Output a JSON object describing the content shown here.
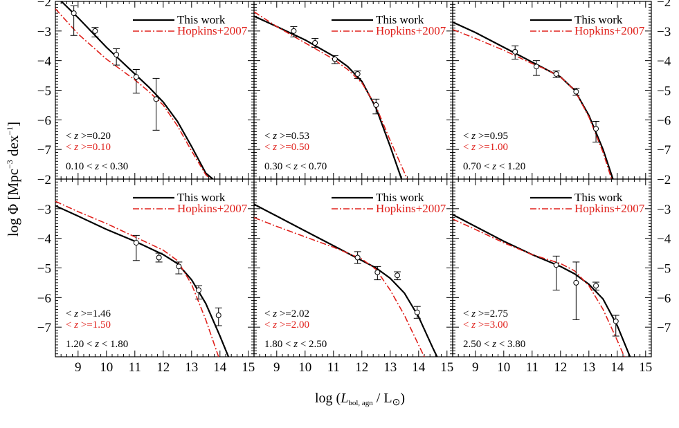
{
  "figure": {
    "ylabel": "log Φ [Mpc⁻³ dex⁻¹]",
    "xlabel": "log (L bol, agn / L⊙)",
    "xlabel_parts": {
      "pre": "log (",
      "L": "L",
      "sub": "bol, agn",
      "post": " / L",
      "sun": "⊙",
      "close": ")"
    },
    "ylabel_parts": {
      "pre": "log Φ [Mpc",
      "sup1": "−3",
      "mid": " dex",
      "sup2": "−1",
      "post": "]"
    },
    "legend": {
      "this_work": "This work",
      "hopkins": "Hopkins+2007"
    },
    "colors": {
      "this_work": "#000000",
      "hopkins": "#e0201b",
      "points": "#000000"
    }
  },
  "chart_data": [
    {
      "type": "line",
      "panel": "top-left",
      "z_range_label": "0.10 < z < 0.30",
      "mean_z_this": "< z >=0.20",
      "mean_z_hopkins": "< z >=0.10",
      "xlim": [
        8.2,
        15.2
      ],
      "ylim": [
        -8.0,
        -2.0
      ],
      "xticks": [
        9,
        10,
        11,
        12,
        13,
        14,
        15
      ],
      "yticks": [
        -2,
        -3,
        -4,
        -5,
        -6,
        -7
      ],
      "series": [
        {
          "name": "This work",
          "style": "solid",
          "x": [
            8.2,
            9,
            10,
            11,
            11.5,
            12,
            12.5,
            13,
            13.5,
            13.75
          ],
          "y": [
            -1.8,
            -2.55,
            -3.55,
            -4.45,
            -4.9,
            -5.4,
            -6.05,
            -6.9,
            -7.8,
            -8.0
          ]
        },
        {
          "name": "Hopkins+2007",
          "style": "dashdot",
          "x": [
            8.2,
            9,
            10,
            11,
            11.5,
            12,
            12.5,
            13,
            13.5,
            13.65
          ],
          "y": [
            -2.25,
            -3.1,
            -3.95,
            -4.65,
            -5.05,
            -5.5,
            -6.2,
            -7.05,
            -7.85,
            -8.0
          ]
        },
        {
          "name": "data",
          "style": "points",
          "x": [
            8.85,
            9.6,
            10.35,
            11.05,
            11.75
          ],
          "y": [
            -2.4,
            -3.0,
            -3.8,
            -4.55,
            -5.3
          ],
          "yerr_low": [
            0.75,
            0.2,
            0.35,
            0.55,
            1.05
          ],
          "yerr_high": [
            0.25,
            0.12,
            0.2,
            0.25,
            0.7
          ]
        }
      ]
    },
    {
      "type": "line",
      "panel": "top-middle",
      "z_range_label": "0.30 < z < 0.70",
      "mean_z_this": "< z >=0.53",
      "mean_z_hopkins": "< z >=0.50",
      "xlim": [
        8.2,
        15.2
      ],
      "ylim": [
        -8.0,
        -2.0
      ],
      "xticks": [
        9,
        10,
        11,
        12,
        13,
        14,
        15
      ],
      "yticks": [
        -2,
        -3,
        -4,
        -5,
        -6,
        -7
      ],
      "series": [
        {
          "name": "This work",
          "style": "solid",
          "x": [
            8.2,
            9,
            10,
            11,
            11.5,
            12,
            12.5,
            13,
            13.4
          ],
          "y": [
            -2.5,
            -2.85,
            -3.3,
            -3.85,
            -4.2,
            -4.7,
            -5.6,
            -6.9,
            -8.0
          ]
        },
        {
          "name": "Hopkins+2007",
          "style": "dashdot",
          "x": [
            8.2,
            9,
            10,
            11,
            11.5,
            12,
            12.5,
            13,
            13.6
          ],
          "y": [
            -2.35,
            -2.85,
            -3.4,
            -3.95,
            -4.3,
            -4.75,
            -5.55,
            -6.7,
            -8.0
          ]
        },
        {
          "name": "data",
          "style": "points",
          "x": [
            9.6,
            10.35,
            11.05,
            11.85,
            12.5
          ],
          "y": [
            -3.0,
            -3.4,
            -3.95,
            -4.45,
            -5.5
          ],
          "yerr_low": [
            0.2,
            0.15,
            0.15,
            0.15,
            0.3
          ],
          "yerr_high": [
            0.15,
            0.15,
            0.12,
            0.1,
            0.2
          ]
        }
      ]
    },
    {
      "type": "line",
      "panel": "top-right",
      "z_range_label": "0.70 < z < 1.20",
      "mean_z_this": "< z >=0.95",
      "mean_z_hopkins": "< z >=1.00",
      "xlim": [
        8.2,
        15.2
      ],
      "ylim": [
        -8.0,
        -2.0
      ],
      "xticks": [
        9,
        10,
        11,
        12,
        13,
        14,
        15
      ],
      "yticks": [
        -2,
        -3,
        -4,
        -5,
        -6,
        -7
      ],
      "series": [
        {
          "name": "This work",
          "style": "solid",
          "x": [
            8.2,
            9,
            10,
            11,
            11.5,
            12,
            12.5,
            13,
            13.5,
            13.85
          ],
          "y": [
            -2.7,
            -3.05,
            -3.55,
            -4.05,
            -4.3,
            -4.55,
            -5.0,
            -5.85,
            -7.0,
            -8.0
          ]
        },
        {
          "name": "Hopkins+2007",
          "style": "dashdot",
          "x": [
            8.2,
            9,
            10,
            11,
            11.5,
            12,
            12.5,
            13,
            13.5,
            13.8
          ],
          "y": [
            -2.95,
            -3.25,
            -3.65,
            -4.1,
            -4.3,
            -4.55,
            -5.0,
            -5.9,
            -7.1,
            -8.0
          ]
        },
        {
          "name": "data",
          "style": "points",
          "x": [
            10.4,
            11.15,
            11.85,
            12.55,
            13.25
          ],
          "y": [
            -3.7,
            -4.2,
            -4.45,
            -5.05,
            -6.3
          ],
          "yerr_low": [
            0.25,
            0.3,
            0.12,
            0.12,
            0.45
          ],
          "yerr_high": [
            0.2,
            0.2,
            0.1,
            0.12,
            0.25
          ]
        }
      ]
    },
    {
      "type": "line",
      "panel": "bottom-left",
      "z_range_label": "1.20 < z < 1.80",
      "mean_z_this": "< z >=1.46",
      "mean_z_hopkins": "< z >=1.50",
      "xlim": [
        8.2,
        15.2
      ],
      "ylim": [
        -8.0,
        -2.0
      ],
      "xticks": [
        9,
        10,
        11,
        12,
        13,
        14,
        15
      ],
      "yticks": [
        -2,
        -3,
        -4,
        -5,
        -6,
        -7
      ],
      "series": [
        {
          "name": "This work",
          "style": "solid",
          "x": [
            8.2,
            9,
            10,
            11,
            12,
            12.5,
            13,
            13.5,
            14,
            14.3
          ],
          "y": [
            -2.9,
            -3.25,
            -3.7,
            -4.1,
            -4.55,
            -4.85,
            -5.4,
            -6.2,
            -7.3,
            -8.0
          ]
        },
        {
          "name": "Hopkins+2007",
          "style": "dashdot",
          "x": [
            8.2,
            9,
            10,
            11,
            12,
            12.5,
            13,
            13.5,
            13.95
          ],
          "y": [
            -2.75,
            -3.1,
            -3.5,
            -3.95,
            -4.4,
            -4.75,
            -5.55,
            -6.75,
            -8.0
          ]
        },
        {
          "name": "data",
          "style": "points",
          "x": [
            11.05,
            11.85,
            12.55,
            13.25,
            13.95
          ],
          "y": [
            -4.15,
            -4.65,
            -4.95,
            -5.75,
            -6.6
          ],
          "yerr_low": [
            0.6,
            0.15,
            0.25,
            0.3,
            0.35
          ],
          "yerr_high": [
            0.25,
            0.15,
            0.15,
            0.15,
            0.25
          ]
        }
      ]
    },
    {
      "type": "line",
      "panel": "bottom-middle",
      "z_range_label": "1.80 < z < 2.50",
      "mean_z_this": "< z >=2.02",
      "mean_z_hopkins": "< z >=2.00",
      "xlim": [
        8.2,
        15.2
      ],
      "ylim": [
        -8.0,
        -2.0
      ],
      "xticks": [
        9,
        10,
        11,
        12,
        13,
        14,
        15
      ],
      "yticks": [
        -2,
        -3,
        -4,
        -5,
        -6,
        -7
      ],
      "series": [
        {
          "name": "This work",
          "style": "solid",
          "x": [
            8.2,
            9,
            10,
            11,
            12,
            12.5,
            13,
            13.5,
            14,
            14.5,
            14.65
          ],
          "y": [
            -2.85,
            -3.25,
            -3.75,
            -4.25,
            -4.75,
            -5.0,
            -5.35,
            -5.85,
            -6.65,
            -7.7,
            -8.0
          ]
        },
        {
          "name": "Hopkins+2007",
          "style": "dashdot",
          "x": [
            8.2,
            9,
            10,
            11,
            12,
            12.5,
            13,
            13.5,
            14,
            14.2
          ],
          "y": [
            -3.3,
            -3.6,
            -3.95,
            -4.3,
            -4.7,
            -5.05,
            -5.75,
            -6.6,
            -7.6,
            -8.0
          ]
        },
        {
          "name": "data",
          "style": "points",
          "x": [
            11.85,
            12.55,
            13.25,
            13.95
          ],
          "y": [
            -4.65,
            -5.15,
            -5.25,
            -6.5
          ],
          "yerr_low": [
            0.2,
            0.25,
            0.15,
            0.2
          ],
          "yerr_high": [
            0.2,
            0.2,
            0.12,
            0.2
          ]
        }
      ]
    },
    {
      "type": "line",
      "panel": "bottom-right",
      "z_range_label": "2.50 < z < 3.80",
      "mean_z_this": "< z >=2.75",
      "mean_z_hopkins": "< z >=3.00",
      "xlim": [
        8.2,
        15.2
      ],
      "ylim": [
        -8.0,
        -2.0
      ],
      "xticks": [
        9,
        10,
        11,
        12,
        13,
        14,
        15
      ],
      "yticks": [
        -2,
        -3,
        -4,
        -5,
        -6,
        -7
      ],
      "series": [
        {
          "name": "This work",
          "style": "solid",
          "x": [
            8.2,
            9,
            10,
            11,
            12,
            12.5,
            13,
            13.5,
            14,
            14.45
          ],
          "y": [
            -3.2,
            -3.6,
            -4.1,
            -4.55,
            -4.95,
            -5.2,
            -5.55,
            -6.05,
            -6.95,
            -8.0
          ]
        },
        {
          "name": "Hopkins+2007",
          "style": "dashdot",
          "x": [
            8.2,
            9,
            10,
            11,
            12,
            12.5,
            13,
            13.5,
            14,
            14.25
          ],
          "y": [
            -3.35,
            -3.7,
            -4.15,
            -4.55,
            -4.85,
            -5.1,
            -5.6,
            -6.4,
            -7.45,
            -8.0
          ]
        },
        {
          "name": "data",
          "style": "points",
          "x": [
            11.85,
            12.55,
            13.25,
            13.95
          ],
          "y": [
            -4.9,
            -5.5,
            -5.6,
            -6.8
          ],
          "yerr_low": [
            0.85,
            1.25,
            0.15,
            0.5
          ],
          "yerr_high": [
            0.3,
            0.7,
            0.12,
            0.2
          ]
        }
      ]
    }
  ]
}
